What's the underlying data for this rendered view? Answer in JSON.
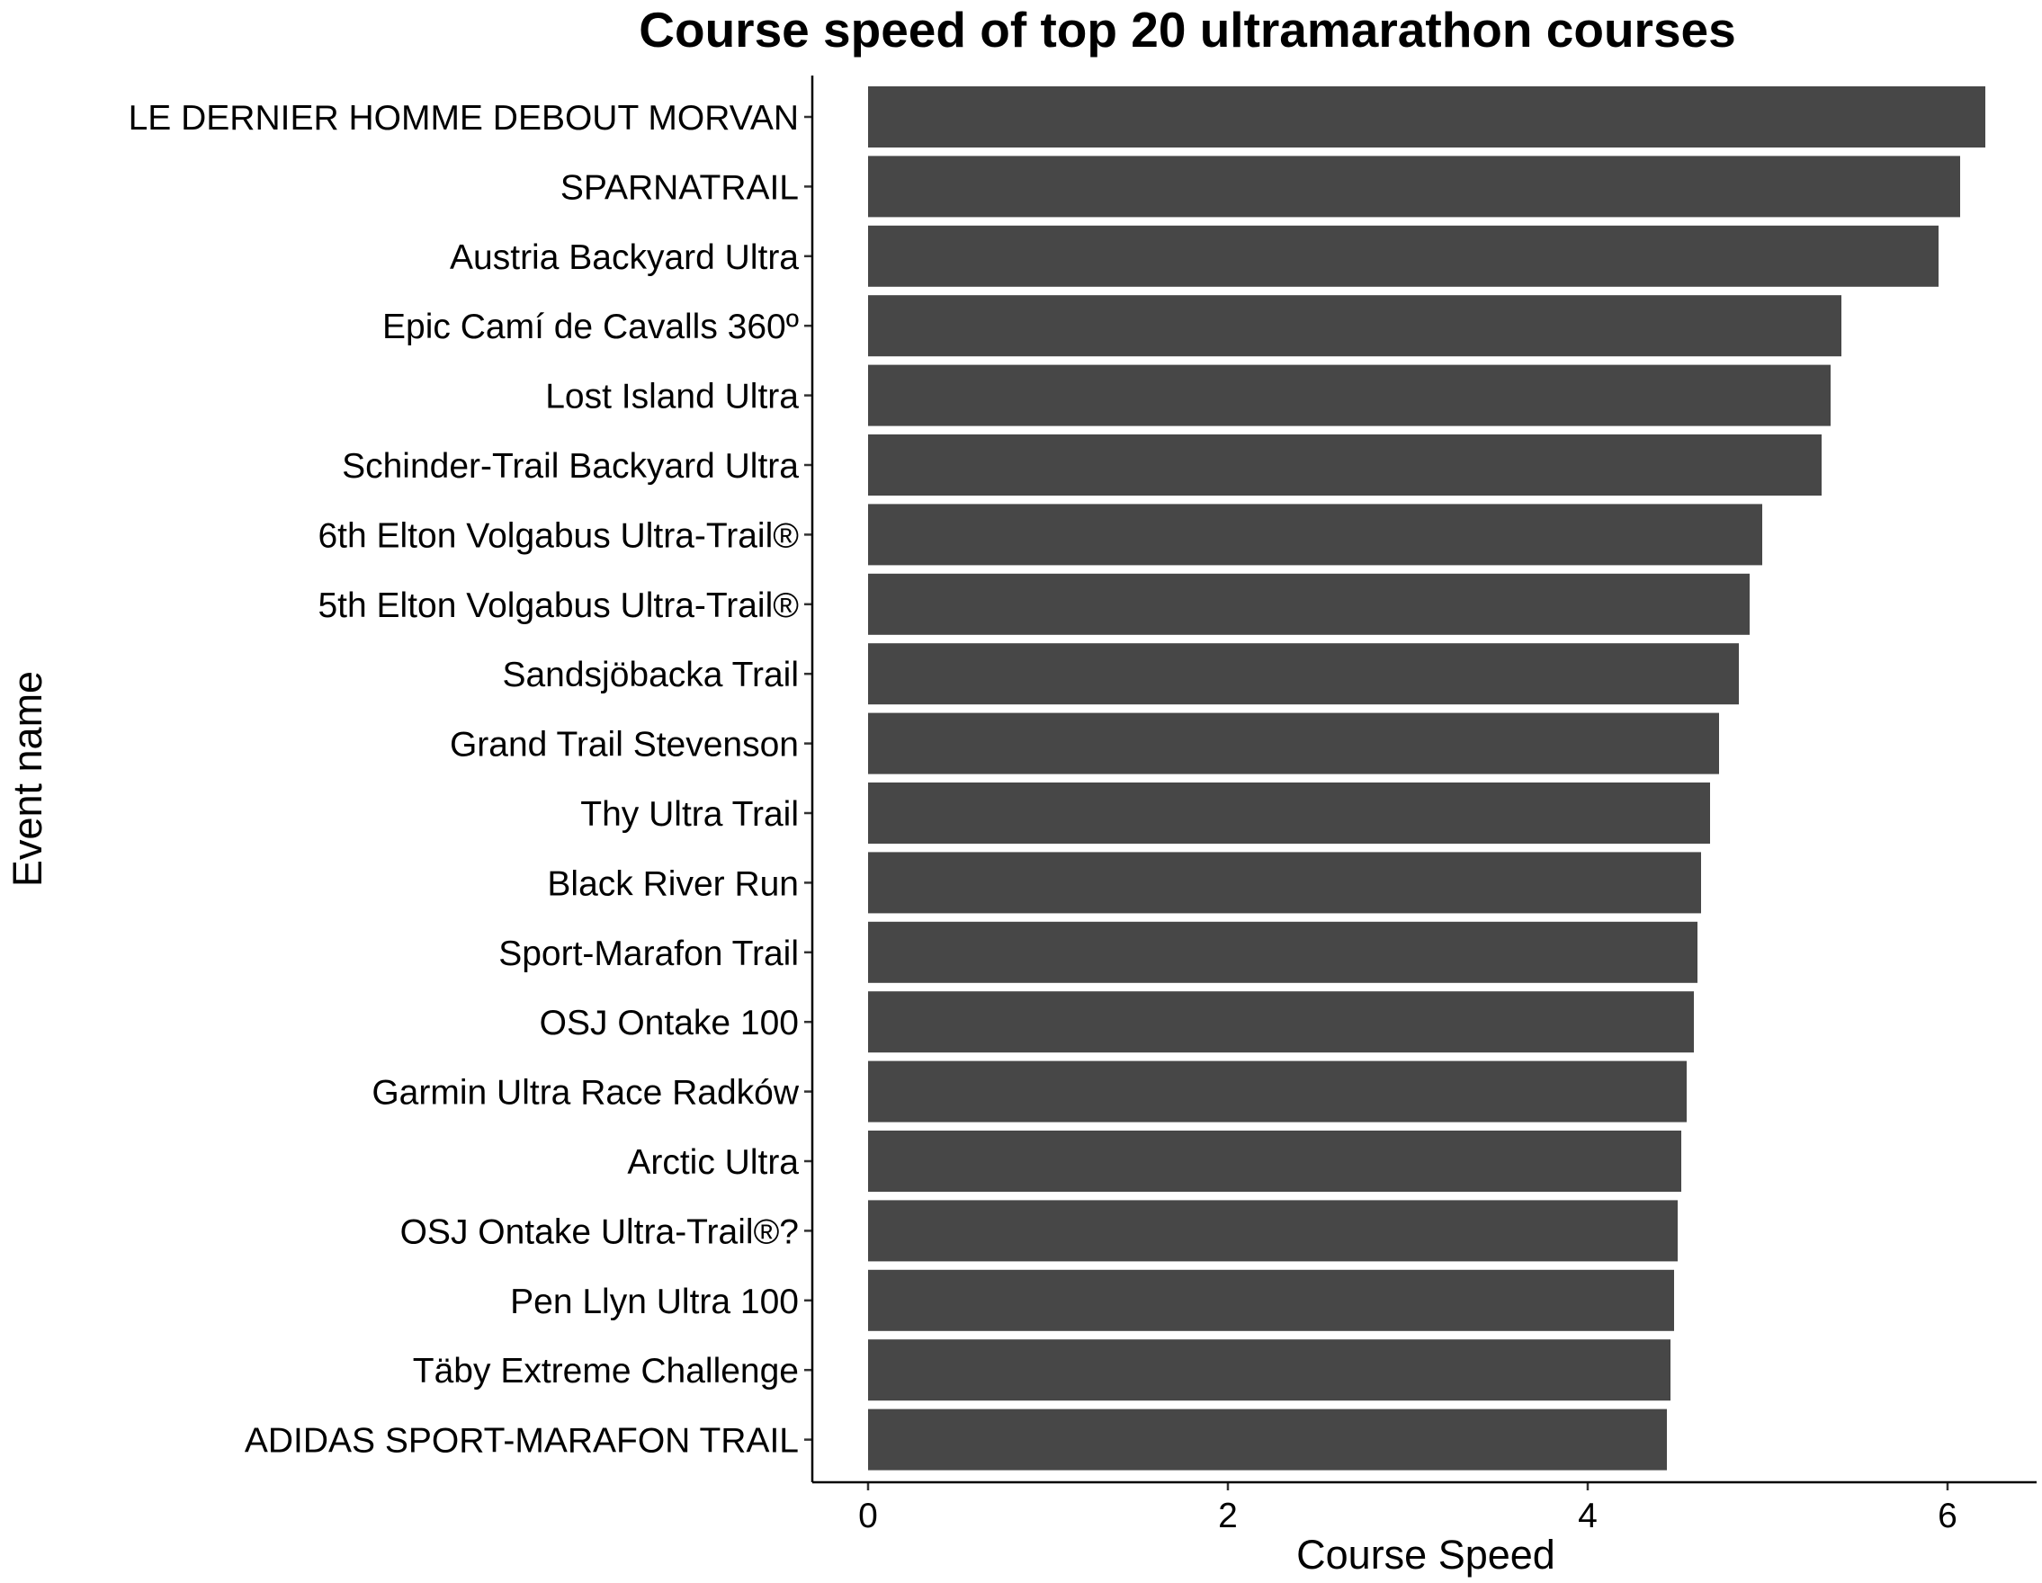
{
  "chart_data": {
    "type": "bar",
    "orientation": "horizontal",
    "title": "Course speed of top 20 ultramarathon courses",
    "xlabel": "Course Speed",
    "ylabel": "Event name",
    "xlim": [
      0,
      6.3
    ],
    "x_ticks": [
      0,
      2,
      4,
      6
    ],
    "grid": false,
    "legend": "none",
    "bar_color": "#474747",
    "categories": [
      "LE DERNIER HOMME DEBOUT MORVAN",
      "SPARNATRAIL",
      "Austria Backyard Ultra",
      "Epic Camí de Cavalls 360º",
      "Lost Island Ultra",
      "Schinder-Trail Backyard Ultra",
      "6th Elton Volgabus Ultra-Trail®",
      "5th Elton Volgabus Ultra-Trail®",
      "Sandsjöbacka Trail",
      "Grand Trail Stevenson",
      "Thy Ultra Trail",
      "Black River Run",
      "Sport-Marafon Trail",
      "OSJ Ontake 100",
      "Garmin Ultra Race Radków",
      "Arctic Ultra",
      "OSJ Ontake Ultra-Trail®?",
      "Pen Llyn Ultra 100",
      "Täby Extreme Challenge",
      "ADIDAS SPORT-MARAFON TRAIL"
    ],
    "values": [
      6.21,
      6.07,
      5.95,
      5.41,
      5.35,
      5.3,
      4.97,
      4.9,
      4.84,
      4.73,
      4.68,
      4.63,
      4.61,
      4.59,
      4.55,
      4.52,
      4.5,
      4.48,
      4.46,
      4.44
    ]
  }
}
